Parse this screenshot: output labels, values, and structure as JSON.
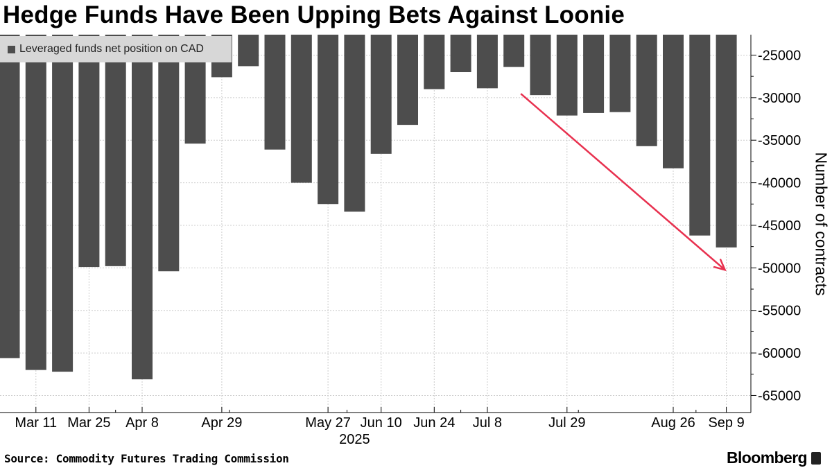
{
  "title": "Hedge Funds Have Been Upping Bets Against Loonie",
  "source": "Source: Commodity Futures Trading Commission",
  "brand": "Bloomberg",
  "colors": {
    "bar": "#4d4d4d",
    "arrow": "#e8314f",
    "legend_bg": "#d7d7d7",
    "grid": "#cccccc"
  },
  "chart_data": {
    "type": "bar",
    "legend": "Leveraged funds net position on CAD",
    "legend_placement": "top-left",
    "ylabel": "Number of contracts",
    "ylim": [
      -67000,
      -22600
    ],
    "yticks": [
      -25000,
      -30000,
      -35000,
      -40000,
      -45000,
      -50000,
      -55000,
      -60000,
      -65000
    ],
    "ytick_labels": [
      "-25000",
      "-30000",
      "-35000",
      "-40000",
      "-45000",
      "-50000",
      "-55000",
      "-60000",
      "-65000"
    ],
    "grid": true,
    "x_year_label": "2025",
    "x": [
      "2025-03-04",
      "2025-03-11",
      "2025-03-18",
      "2025-03-25",
      "2025-04-01",
      "2025-04-08",
      "2025-04-15",
      "2025-04-22",
      "2025-04-29",
      "2025-05-06",
      "2025-05-13",
      "2025-05-20",
      "2025-05-27",
      "2025-06-03",
      "2025-06-10",
      "2025-06-17",
      "2025-06-24",
      "2025-07-01",
      "2025-07-08",
      "2025-07-15",
      "2025-07-22",
      "2025-07-29",
      "2025-08-05",
      "2025-08-12",
      "2025-08-19",
      "2025-08-26",
      "2025-09-02",
      "2025-09-09"
    ],
    "series": [
      {
        "values": [
          -60600,
          -62000,
          -62200,
          -49900,
          -49800,
          -63100,
          -50400,
          -35400,
          -27600,
          -26300,
          -36100,
          -40000,
          -42500,
          -43400,
          -36600,
          -33200,
          -29000,
          -27000,
          -28900,
          -26400,
          -29700,
          -32100,
          -31800,
          -31700,
          -35700,
          -38300,
          -46200,
          -47600
        ]
      }
    ],
    "x_tick_labels": [
      {
        "label": "Mar 11",
        "date": "2025-03-11"
      },
      {
        "label": "Mar 25",
        "date": "2025-03-25"
      },
      {
        "label": "Apr 8",
        "date": "2025-04-08"
      },
      {
        "label": "Apr 29",
        "date": "2025-04-29"
      },
      {
        "label": "May 27",
        "date": "2025-05-27"
      },
      {
        "label": "Jun 10",
        "date": "2025-06-10"
      },
      {
        "label": "Jun 24",
        "date": "2025-06-24"
      },
      {
        "label": "Jul 8",
        "date": "2025-07-08"
      },
      {
        "label": "Jul 29",
        "date": "2025-07-29"
      },
      {
        "label": "Aug 26",
        "date": "2025-08-26"
      },
      {
        "label": "Sep 9",
        "date": "2025-09-09"
      }
    ],
    "annotations": [
      {
        "type": "arrow",
        "from": {
          "x": "2025-07-15",
          "y": -29700
        },
        "to": {
          "x": "2025-09-09",
          "y": -50400
        }
      }
    ]
  }
}
